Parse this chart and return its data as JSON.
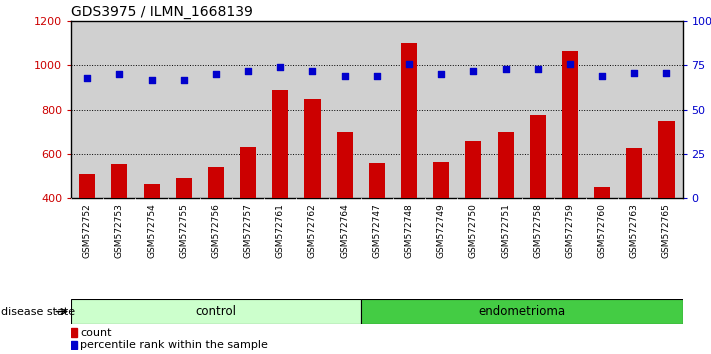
{
  "title": "GDS3975 / ILMN_1668139",
  "samples": [
    "GSM572752",
    "GSM572753",
    "GSM572754",
    "GSM572755",
    "GSM572756",
    "GSM572757",
    "GSM572761",
    "GSM572762",
    "GSM572764",
    "GSM572747",
    "GSM572748",
    "GSM572749",
    "GSM572750",
    "GSM572751",
    "GSM572758",
    "GSM572759",
    "GSM572760",
    "GSM572763",
    "GSM572765"
  ],
  "counts": [
    510,
    555,
    465,
    490,
    540,
    630,
    890,
    850,
    700,
    560,
    1100,
    565,
    660,
    700,
    775,
    1065,
    450,
    625,
    750
  ],
  "percentiles": [
    68,
    70,
    67,
    67,
    70,
    72,
    74,
    72,
    69,
    69,
    76,
    70,
    72,
    73,
    73,
    76,
    69,
    71,
    71
  ],
  "control_count": 9,
  "endometrioma_count": 10,
  "ylim_left": [
    400,
    1200
  ],
  "ylim_right": [
    0,
    100
  ],
  "yticks_left": [
    400,
    600,
    800,
    1000,
    1200
  ],
  "yticks_right": [
    0,
    25,
    50,
    75,
    100
  ],
  "bar_color": "#cc0000",
  "dot_color": "#0000cc",
  "control_bg": "#ccffcc",
  "endo_bg": "#44cc44",
  "bg_color": "#ffffff",
  "xlabel_label": "disease state",
  "legend_count": "count",
  "legend_pct": "percentile rank within the sample",
  "grid_color": "#000000",
  "sample_bg": "#d0d0d0"
}
